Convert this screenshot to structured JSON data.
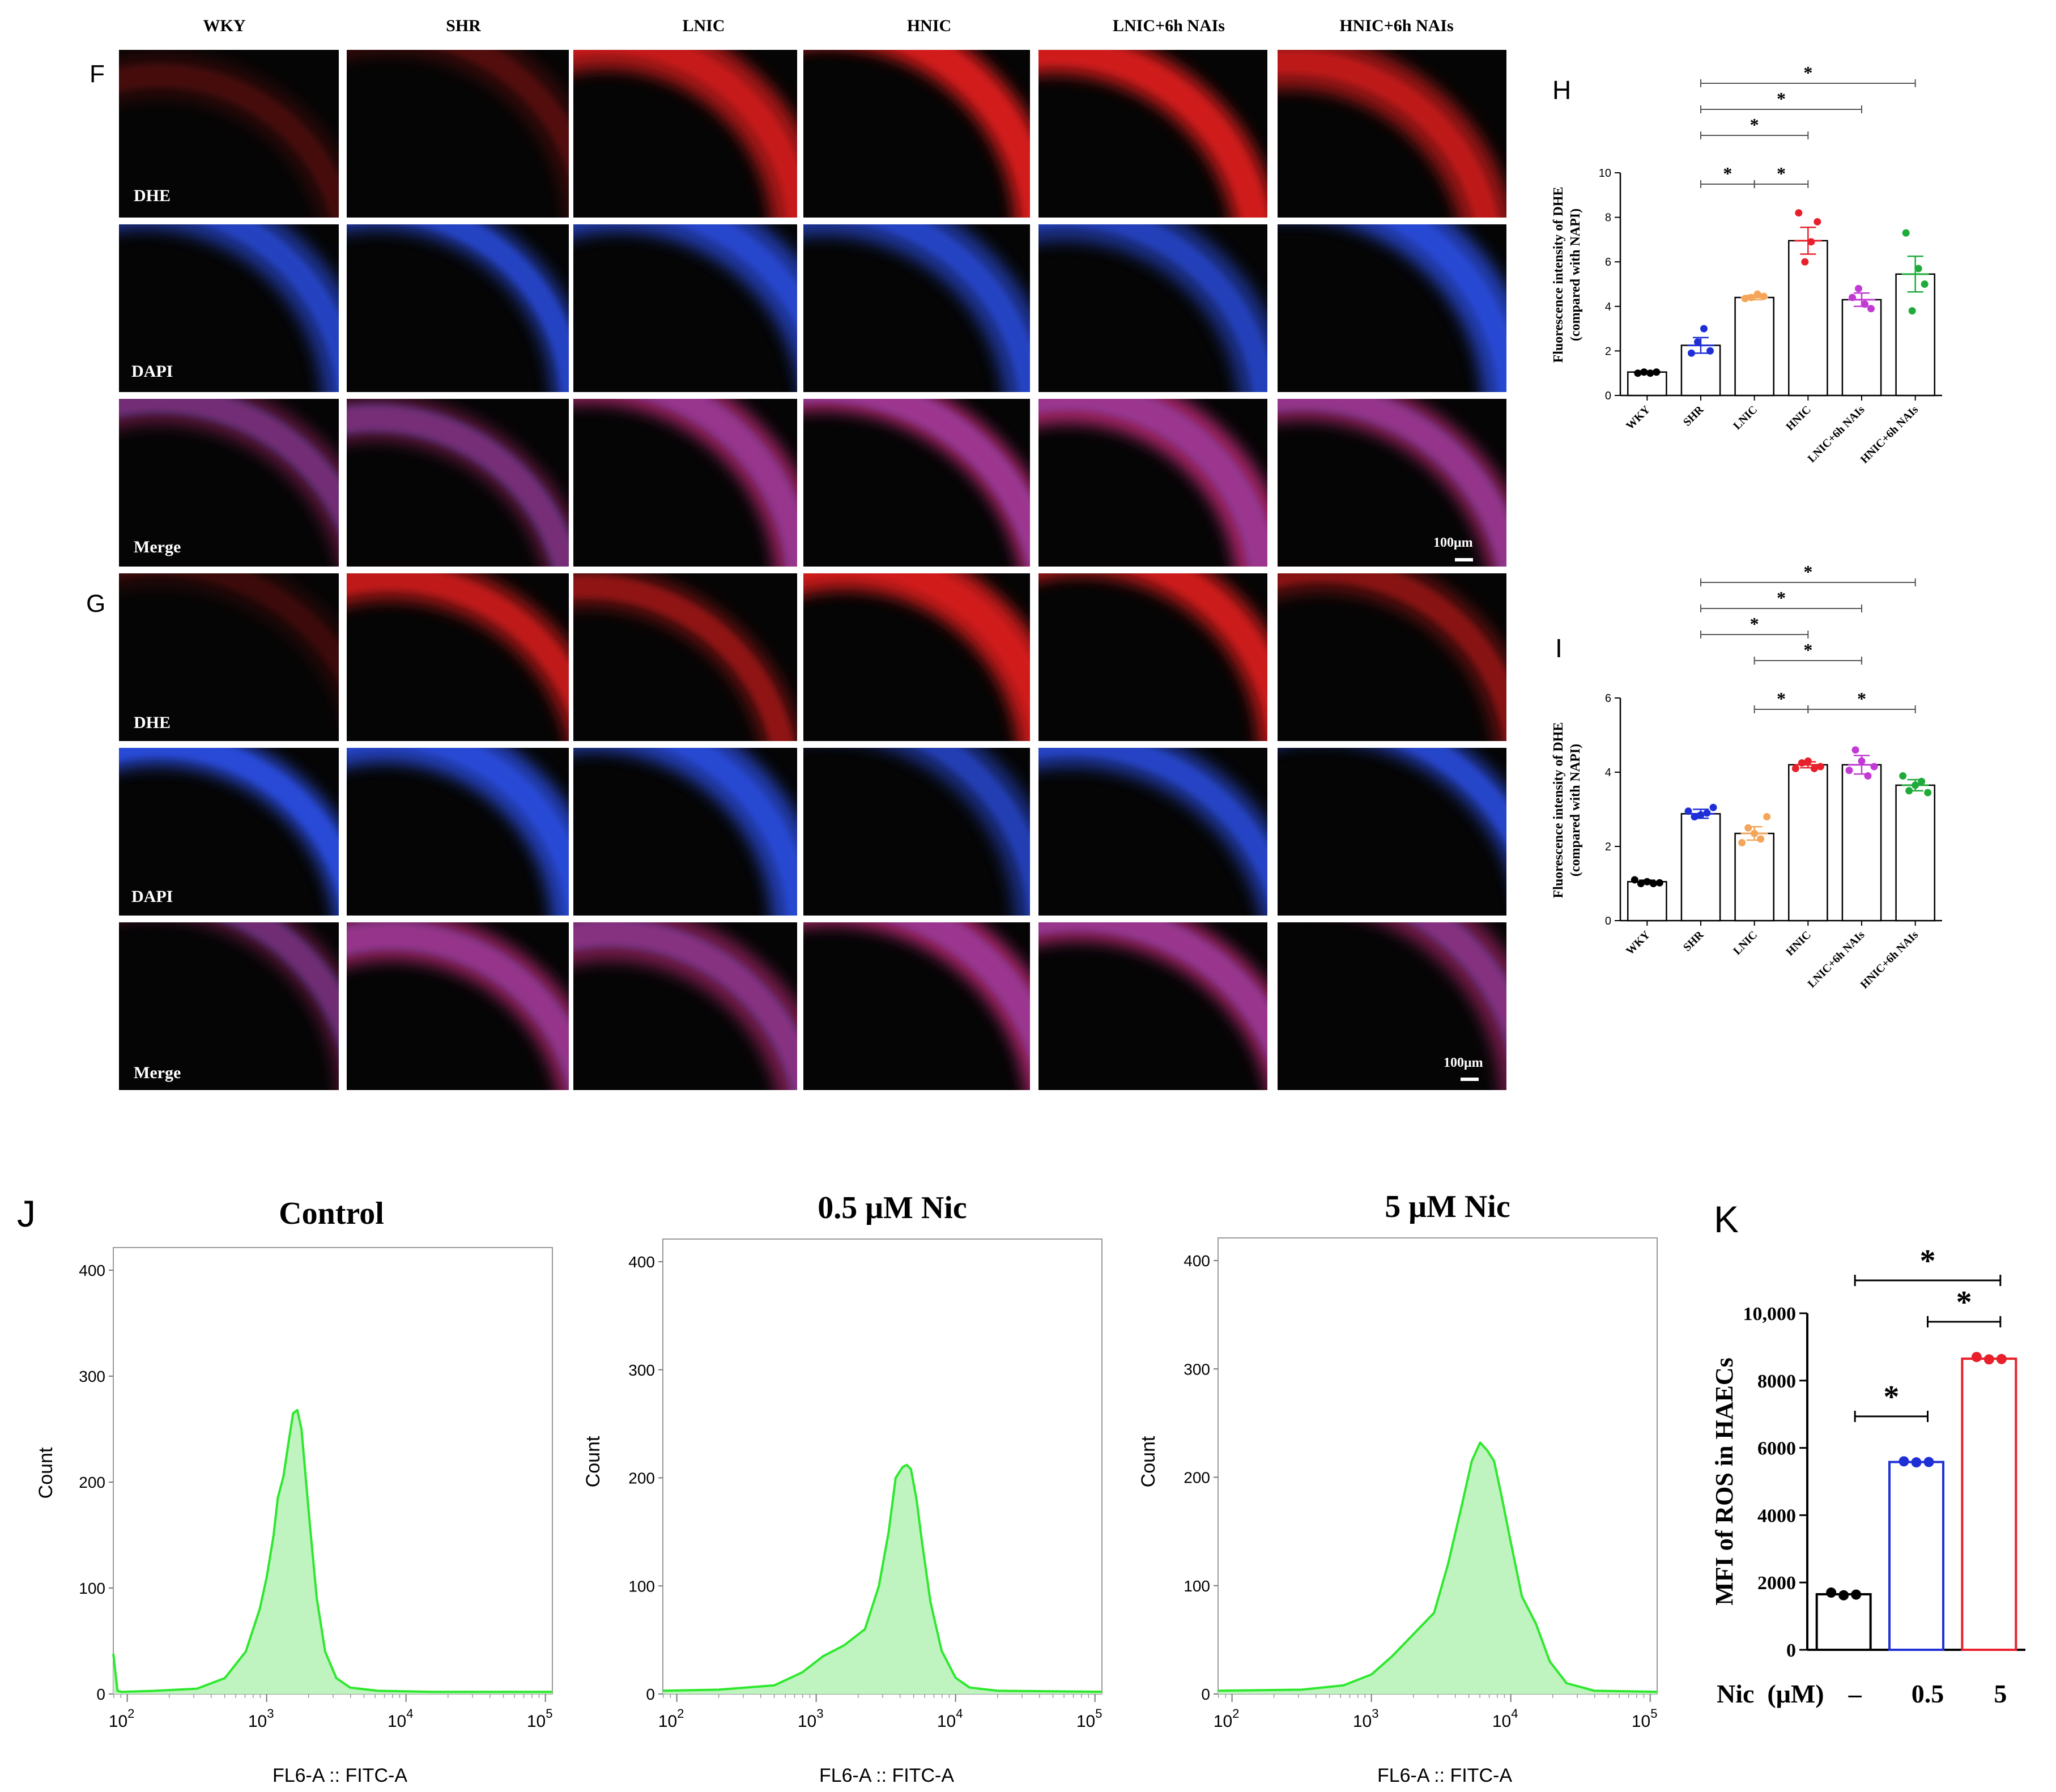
{
  "colors": {
    "wky": "#000000",
    "shr": "#1f2fd6",
    "lnic": "#f4a55a",
    "hnic": "#e8202b",
    "lnic_nais": "#c23ad4",
    "hnic_nais": "#1faa3a",
    "ros_neg": "#000000",
    "ros_low": "#1f2fd6",
    "ros_high": "#e8202b",
    "histogram_line": "#2ee82e",
    "histogram_fill": "#bff3bf",
    "dhe_stain": "#d41a1a",
    "dapi_stain": "#2a4de0"
  },
  "panel_letters": {
    "f": "F",
    "g": "G",
    "h": "H",
    "i": "I",
    "j": "J",
    "k": "K"
  },
  "micrograph": {
    "columns": [
      "WKY",
      "SHR",
      "LNIC",
      "HNIC",
      "LNIC+6h NAIs",
      "HNIC+6h NAIs"
    ],
    "row_labels": [
      "DHE",
      "DAPI",
      "Merge"
    ],
    "scale_bar": "100μm",
    "dhe_brightness_f": [
      0.18,
      0.22,
      0.78,
      0.95,
      0.9,
      0.7
    ],
    "dhe_brightness_g": [
      0.15,
      0.72,
      0.45,
      0.92,
      0.85,
      0.42
    ]
  },
  "chart_data": [
    {
      "id": "H",
      "type": "bar",
      "ylabel": [
        "Fluorescence intensity of DHE",
        "(compared with NAPI)"
      ],
      "categories": [
        "WKY",
        "SHR",
        "LNIC",
        "HNIC",
        "LNIC+6h NAIs",
        "HNIC+6h NAIs"
      ],
      "values": [
        1.05,
        2.25,
        4.4,
        6.95,
        4.3,
        5.45
      ],
      "errors": [
        0.05,
        0.35,
        0.1,
        0.6,
        0.3,
        0.8
      ],
      "points": [
        [
          1.0,
          1.05,
          1.0,
          1.05
        ],
        [
          1.9,
          2.4,
          3.0,
          2.0
        ],
        [
          4.35,
          4.4,
          4.55,
          4.45
        ],
        [
          8.2,
          6.0,
          6.9,
          7.8
        ],
        [
          4.4,
          4.8,
          4.1,
          3.9
        ],
        [
          7.3,
          3.8,
          5.7,
          5.0
        ]
      ],
      "ylim": [
        0,
        10
      ],
      "yticks": [
        "0",
        "2",
        "4",
        "6",
        "8",
        "10"
      ],
      "significance": [
        {
          "from": 1,
          "to": 2,
          "label": "*"
        },
        {
          "from": 2,
          "to": 3,
          "label": "*"
        },
        {
          "from": 1,
          "to": 3,
          "label": "*"
        },
        {
          "from": 1,
          "to": 4,
          "label": "*"
        },
        {
          "from": 1,
          "to": 5,
          "label": "*"
        }
      ]
    },
    {
      "id": "I",
      "type": "bar",
      "ylabel": [
        "Fluorescence intensity of DHE",
        "(compared with NAPI)"
      ],
      "categories": [
        "WKY",
        "SHR",
        "LNIC",
        "HNIC",
        "LNIC+6h NAIs",
        "HNIC+6h NAIs"
      ],
      "values": [
        1.05,
        2.88,
        2.35,
        4.2,
        4.2,
        3.65
      ],
      "errors": [
        0.04,
        0.12,
        0.18,
        0.08,
        0.25,
        0.15
      ],
      "points": [
        [
          1.1,
          1.0,
          1.05,
          1.0,
          1.02
        ],
        [
          2.95,
          2.8,
          2.85,
          2.9,
          3.05
        ],
        [
          2.1,
          2.5,
          2.35,
          2.2,
          2.8
        ],
        [
          4.1,
          4.25,
          4.3,
          4.1,
          4.15
        ],
        [
          4.05,
          4.6,
          4.3,
          3.9,
          4.15
        ],
        [
          3.9,
          3.5,
          3.65,
          3.75,
          3.45
        ]
      ],
      "ylim": [
        0,
        6
      ],
      "yticks": [
        "0",
        "2",
        "4",
        "6"
      ],
      "significance": [
        {
          "from": 2,
          "to": 3,
          "label": "*"
        },
        {
          "from": 2,
          "to": 4,
          "label": "*"
        },
        {
          "from": 1,
          "to": 3,
          "label": "*"
        },
        {
          "from": 3,
          "to": 5,
          "label": "*"
        },
        {
          "from": 1,
          "to": 4,
          "label": "*"
        },
        {
          "from": 1,
          "to": 5,
          "label": "*"
        }
      ]
    },
    {
      "id": "J1",
      "type": "area",
      "title": "Control",
      "xlabel": "FL6-A :: FITC-A",
      "ylabel": "Count",
      "ylim": [
        0,
        400
      ],
      "yticks": [
        "0",
        "100",
        "200",
        "300",
        "400"
      ],
      "xscale": "log",
      "xlim_log10": [
        1.9,
        5.05
      ],
      "xtick_bases": [
        "10",
        "10",
        "10",
        "10"
      ],
      "xtick_exps": [
        "2",
        "3",
        "4",
        "5"
      ],
      "x": [
        1.9,
        1.93,
        1.96,
        2.2,
        2.5,
        2.7,
        2.85,
        2.95,
        3.0,
        3.05,
        3.08,
        3.12,
        3.16,
        3.19,
        3.22,
        3.25,
        3.28,
        3.31,
        3.36,
        3.42,
        3.5,
        3.6,
        3.8,
        4.2,
        5.05
      ],
      "y": [
        38,
        3,
        2,
        3,
        5,
        15,
        40,
        80,
        110,
        150,
        185,
        205,
        240,
        265,
        268,
        250,
        205,
        160,
        90,
        40,
        15,
        6,
        3,
        2,
        2
      ]
    },
    {
      "id": "J2",
      "type": "area",
      "title": "0.5 μM Nic",
      "xlabel": "FL6-A :: FITC-A",
      "ylabel": "Count",
      "ylim": [
        0,
        400
      ],
      "yticks": [
        "0",
        "100",
        "200",
        "300",
        "400"
      ],
      "xscale": "log",
      "xlim_log10": [
        1.9,
        5.05
      ],
      "xtick_bases": [
        "10",
        "10",
        "10",
        "10"
      ],
      "xtick_exps": [
        "2",
        "3",
        "4",
        "5"
      ],
      "x": [
        1.9,
        2.3,
        2.7,
        2.9,
        3.05,
        3.2,
        3.35,
        3.45,
        3.52,
        3.57,
        3.62,
        3.65,
        3.68,
        3.72,
        3.76,
        3.82,
        3.9,
        4.0,
        4.1,
        4.3,
        5.05
      ],
      "y": [
        3,
        4,
        8,
        20,
        35,
        45,
        60,
        100,
        150,
        200,
        210,
        212,
        208,
        180,
        140,
        85,
        40,
        15,
        6,
        3,
        2
      ]
    },
    {
      "id": "J3",
      "type": "area",
      "title": "5 μM Nic",
      "xlabel": "FL6-A :: FITC-A",
      "ylabel": "Count",
      "ylim": [
        0,
        400
      ],
      "yticks": [
        "0",
        "100",
        "200",
        "300",
        "400"
      ],
      "xscale": "log",
      "xlim_log10": [
        1.9,
        5.05
      ],
      "xtick_bases": [
        "10",
        "10",
        "10",
        "10"
      ],
      "xtick_exps": [
        "2",
        "3",
        "4",
        "5"
      ],
      "x": [
        1.9,
        2.5,
        2.8,
        3.0,
        3.15,
        3.3,
        3.45,
        3.55,
        3.65,
        3.72,
        3.78,
        3.83,
        3.88,
        3.93,
        4.0,
        4.08,
        4.18,
        4.28,
        4.4,
        4.6,
        5.05
      ],
      "y": [
        3,
        4,
        8,
        18,
        35,
        55,
        75,
        120,
        175,
        215,
        232,
        225,
        215,
        185,
        140,
        90,
        65,
        30,
        10,
        3,
        2
      ]
    },
    {
      "id": "K",
      "type": "bar",
      "ylabel": "MFI of ROS in HAECs",
      "xlabel": "Nic  (μM)",
      "categories": [
        "–",
        "0.5",
        "5"
      ],
      "values": [
        1650,
        5580,
        8650
      ],
      "points": [
        [
          1700,
          1620,
          1640
        ],
        [
          5600,
          5570,
          5580
        ],
        [
          8700,
          8630,
          8640
        ]
      ],
      "ylim": [
        0,
        10000
      ],
      "yticks": [
        "0",
        "2000",
        "4000",
        "6000",
        "8000",
        "10,000"
      ],
      "significance": [
        {
          "from": 0,
          "to": 1,
          "label": "*"
        },
        {
          "from": 1,
          "to": 2,
          "label": "*"
        },
        {
          "from": 0,
          "to": 2,
          "label": "*"
        }
      ]
    }
  ]
}
